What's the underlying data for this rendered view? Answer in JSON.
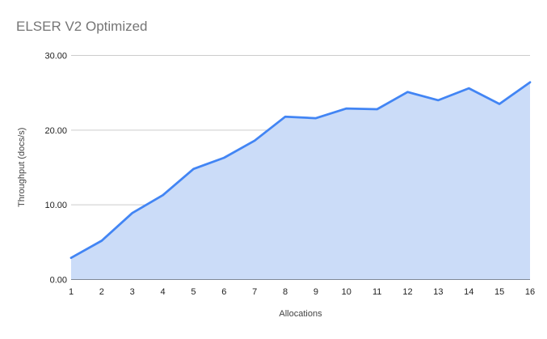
{
  "chart_data": {
    "type": "area",
    "title": "ELSER V2 Optimized",
    "xlabel": "Allocations",
    "ylabel": "Throughput (docs/s)",
    "categories": [
      1,
      2,
      3,
      4,
      5,
      6,
      7,
      8,
      9,
      10,
      11,
      12,
      13,
      14,
      15,
      16
    ],
    "values": [
      2.9,
      5.2,
      8.9,
      11.3,
      14.8,
      16.3,
      18.6,
      21.8,
      21.6,
      22.9,
      22.8,
      25.1,
      24.0,
      25.6,
      23.5,
      26.4
    ],
    "ylim": [
      0,
      30
    ],
    "yticks": [
      0,
      10,
      20,
      30
    ],
    "ytick_labels": [
      "0.00",
      "10.00",
      "20.00",
      "30.00"
    ],
    "grid": true,
    "legend": "none",
    "markers": "none",
    "colors": {
      "line": "#4285f4",
      "area_fill": "#cbdcf8",
      "gridline": "#cccccc",
      "axis_line": "#333333",
      "tick_text": "#222222",
      "axis_title_text": "#424242",
      "title_text": "#757575",
      "background": "#ffffff"
    }
  }
}
